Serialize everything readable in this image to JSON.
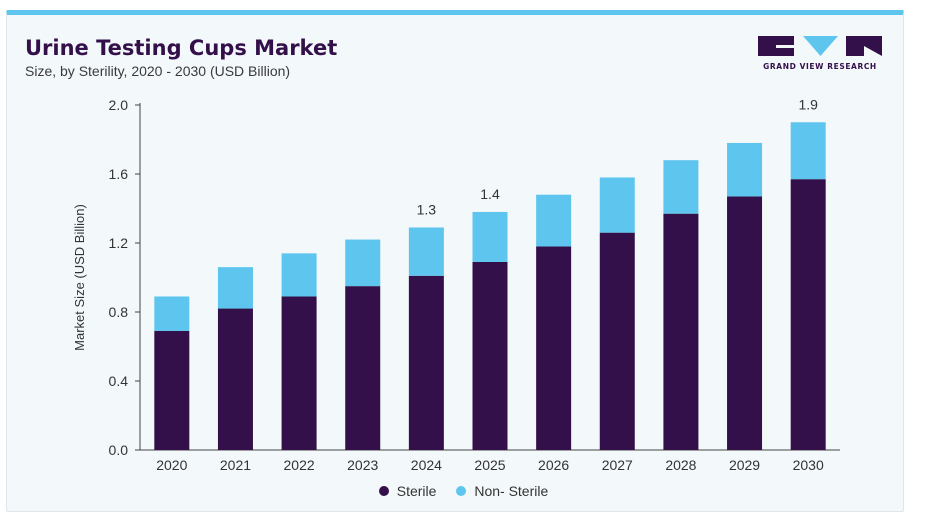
{
  "header": {
    "title": "Urine Testing Cups Market",
    "subtitle": "Size, by Sterility, 2020 - 2030 (USD Billion)"
  },
  "brand": {
    "name": "GRAND VIEW RESEARCH",
    "logo_color": "#34104b",
    "logo_accent": "#5ec6ee"
  },
  "colors": {
    "sterile": "#34104b",
    "non_sterile": "#5ec6ee",
    "frame_top": "#5ec6ee",
    "background": "#f3f8fb"
  },
  "chart_data": {
    "type": "bar",
    "stacked": true,
    "title": "Urine Testing Cups Market",
    "subtitle": "Size, by Sterility, 2020 - 2030 (USD Billion)",
    "xlabel": "",
    "ylabel": "Market Size (USD Billion)",
    "ylim": [
      0,
      2.0
    ],
    "yticks": [
      "0.0",
      "0.4",
      "0.8",
      "1.2",
      "1.6",
      "2.0"
    ],
    "categories": [
      "2020",
      "2021",
      "2022",
      "2023",
      "2024",
      "2025",
      "2026",
      "2027",
      "2028",
      "2029",
      "2030"
    ],
    "series": [
      {
        "name": "Sterile",
        "values": [
          0.69,
          0.82,
          0.89,
          0.95,
          1.01,
          1.09,
          1.18,
          1.26,
          1.37,
          1.47,
          1.57
        ]
      },
      {
        "name": "Non- Sterile",
        "values": [
          0.2,
          0.24,
          0.25,
          0.27,
          0.28,
          0.29,
          0.3,
          0.32,
          0.31,
          0.31,
          0.33
        ]
      }
    ],
    "data_labels": [
      {
        "category": "2024",
        "text": "1.3"
      },
      {
        "category": "2025",
        "text": "1.4"
      },
      {
        "category": "2030",
        "text": "1.9"
      }
    ],
    "grid": false,
    "legend": "bottom-center"
  }
}
